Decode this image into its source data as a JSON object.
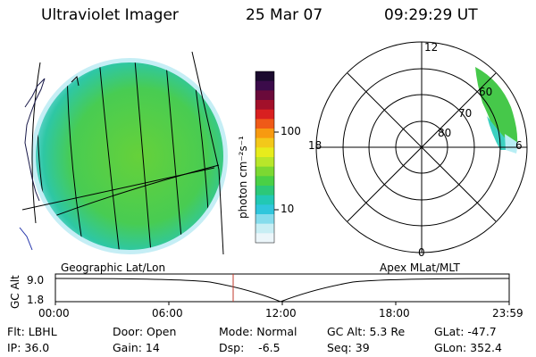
{
  "header": {
    "instrument": "Ultraviolet Imager",
    "date": "25 Mar 07",
    "time": "09:29:29 UT"
  },
  "colorbar": {
    "unit_label": "photon cm⁻²s⁻¹",
    "tick_labels": [
      "100",
      "10"
    ],
    "colors": [
      "#1b0a2e",
      "#3b0b4a",
      "#6a0a3a",
      "#a2102a",
      "#d82020",
      "#ef5a18",
      "#f79a10",
      "#f3c81a",
      "#e7ec1c",
      "#b8e62a",
      "#7cd832",
      "#4ad046",
      "#2cc878",
      "#22c8b4",
      "#30c6dc",
      "#86dcec",
      "#c8eef4",
      "#ecf6fa"
    ]
  },
  "polar": {
    "mlt_labels": [
      "12",
      "18",
      "6",
      "0"
    ],
    "lat_labels": [
      "60",
      "70",
      "80"
    ]
  },
  "timeline": {
    "title_left": "Geographic Lat/Lon",
    "title_right": "Apex MLat/MLT",
    "axis_label": "GC Alt",
    "y_ticks": [
      "9.0",
      "1.8"
    ],
    "x_ticks": [
      "00:00",
      "06:00",
      "12:00",
      "18:00",
      "23:59"
    ],
    "accent_color": "#c0392b"
  },
  "info": {
    "filter": "Flt: LBHL",
    "ip": "IP: 36.0",
    "door": "Door: Open",
    "gain": "Gain: 14",
    "mode": "Mode: Normal",
    "dsp": "Dsp:    -6.5",
    "gc_alt": "GC Alt: 5.3 Re",
    "seq": "Seq: 39",
    "glat": "GLat: -47.7",
    "glon": "GLon: 352.4"
  }
}
